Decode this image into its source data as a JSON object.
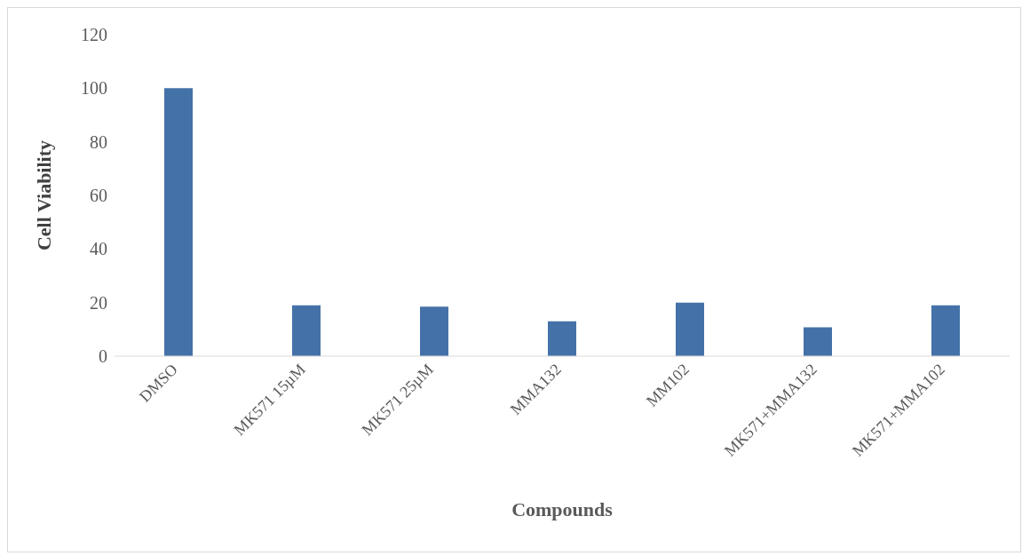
{
  "chart_data": {
    "type": "bar",
    "xlabel": "Compounds",
    "ylabel": "Cell Viability",
    "categories": [
      "DMSO",
      "MK571 15µM",
      "MK571 25µM",
      "MMA132",
      "MM102",
      "MK571+MMA132",
      "MK571+MMA102"
    ],
    "values": [
      100,
      19,
      18.5,
      13,
      20,
      10.8,
      19
    ],
    "color": "#4472a8",
    "ylim": [
      0,
      120
    ],
    "yticks": [
      0,
      20,
      40,
      60,
      80,
      100,
      120
    ],
    "grid": false
  }
}
